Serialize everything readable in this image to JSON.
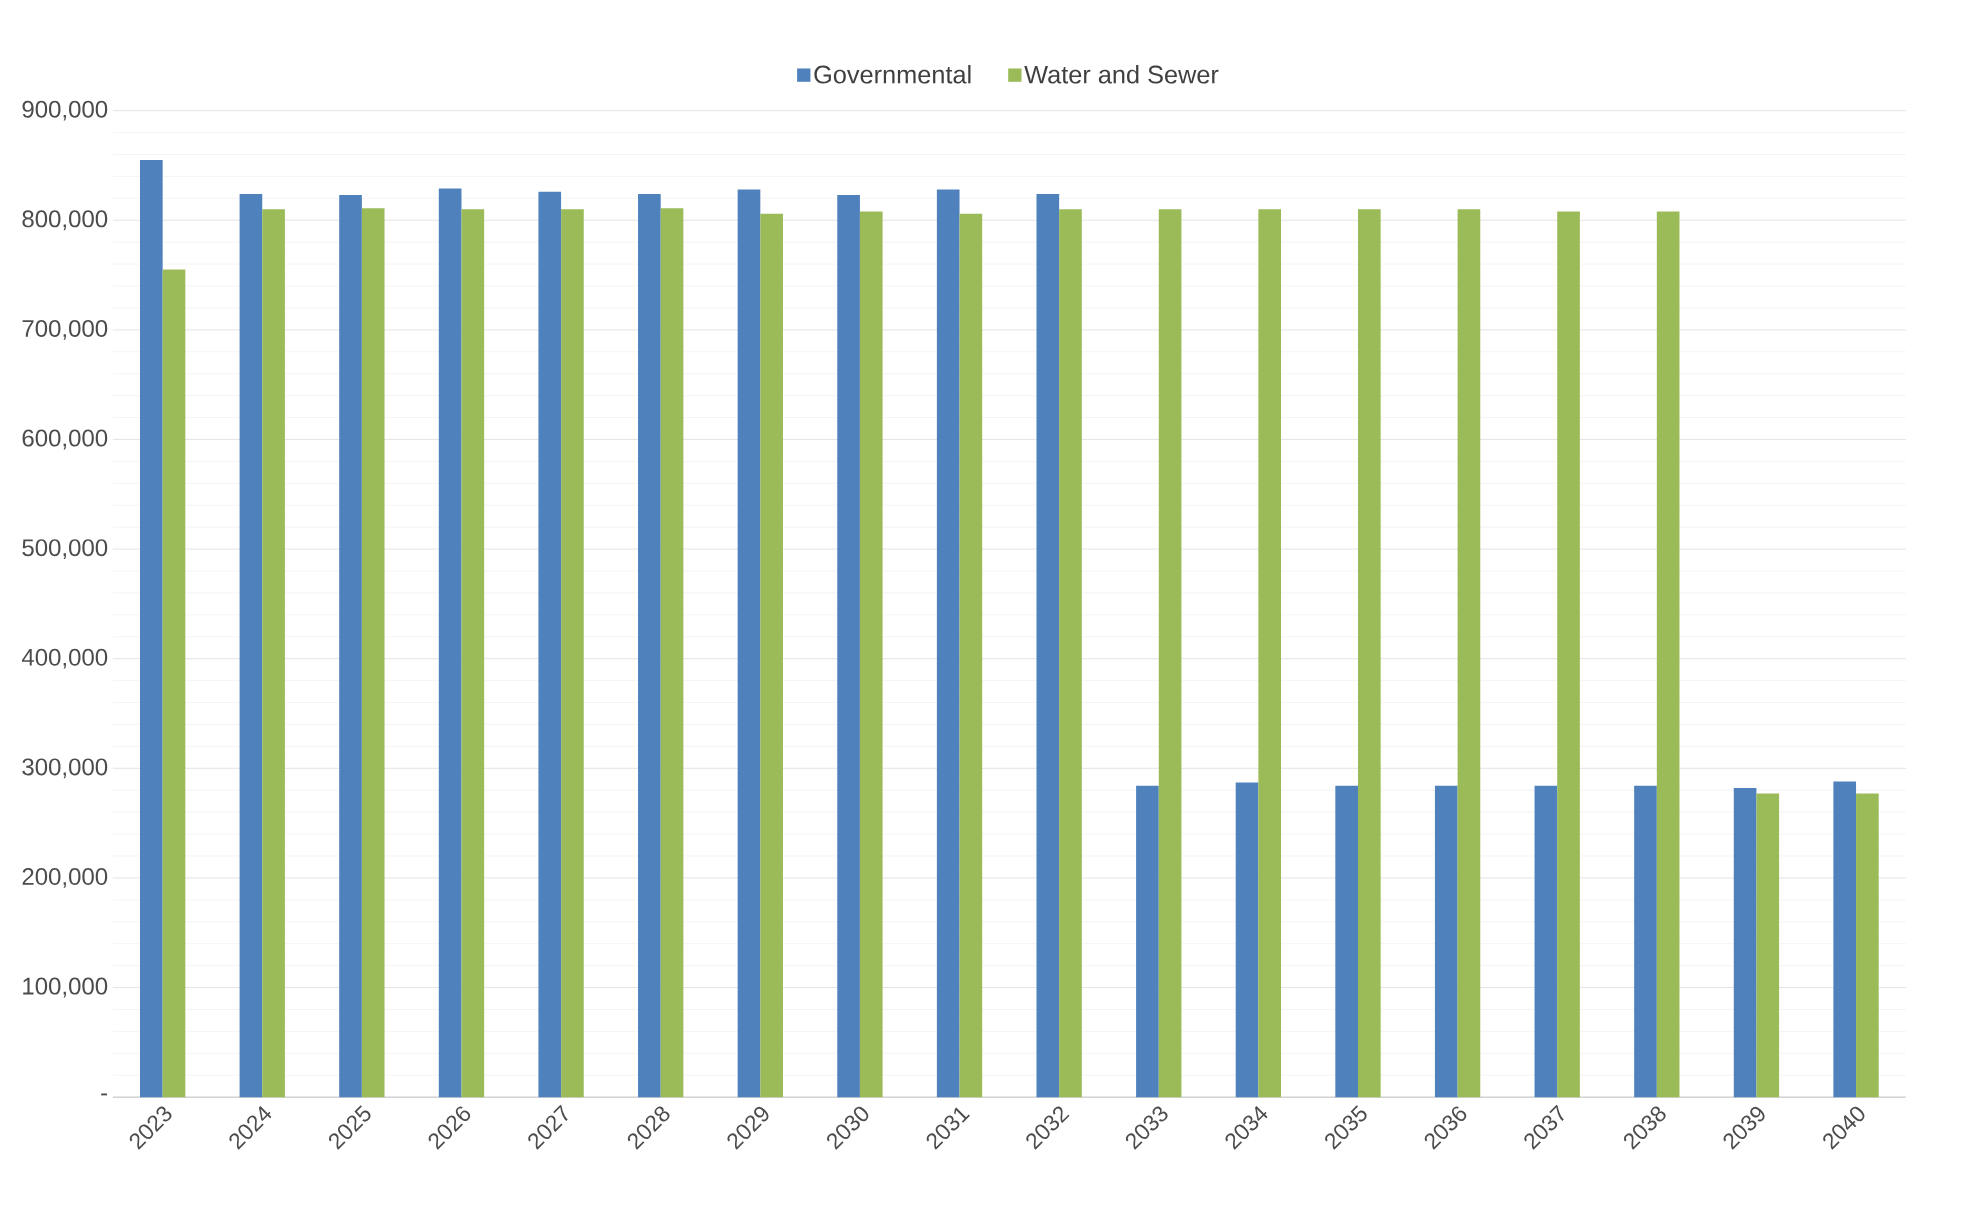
{
  "chart_data": {
    "type": "bar",
    "categories": [
      "2023",
      "2024",
      "2025",
      "2026",
      "2027",
      "2028",
      "2029",
      "2030",
      "2031",
      "2032",
      "2033",
      "2034",
      "2035",
      "2036",
      "2037",
      "2038",
      "2039",
      "2040"
    ],
    "series": [
      {
        "name": "Governmental",
        "color": "#4f81bd",
        "values": [
          855000,
          824000,
          823000,
          829000,
          826000,
          824000,
          828000,
          823000,
          828000,
          824000,
          284000,
          287000,
          284000,
          284000,
          284000,
          284000,
          282000,
          288000
        ]
      },
      {
        "name": "Water and Sewer",
        "color": "#9bbb59",
        "values": [
          755000,
          810000,
          811000,
          810000,
          810000,
          811000,
          806000,
          808000,
          806000,
          810000,
          810000,
          810000,
          810000,
          810000,
          808000,
          808000,
          277000,
          277000
        ]
      }
    ],
    "ylim": [
      0,
      900000
    ],
    "yticks": [
      {
        "value": 0,
        "label": "-"
      },
      {
        "value": 100000,
        "label": "100,000"
      },
      {
        "value": 200000,
        "label": "200,000"
      },
      {
        "value": 300000,
        "label": "300,000"
      },
      {
        "value": 400000,
        "label": "400,000"
      },
      {
        "value": 500000,
        "label": "500,000"
      },
      {
        "value": 600000,
        "label": "600,000"
      },
      {
        "value": 700000,
        "label": "700,000"
      },
      {
        "value": 800000,
        "label": "800,000"
      },
      {
        "value": 900000,
        "label": "900,000"
      }
    ],
    "grid": "y",
    "legend": "top"
  }
}
